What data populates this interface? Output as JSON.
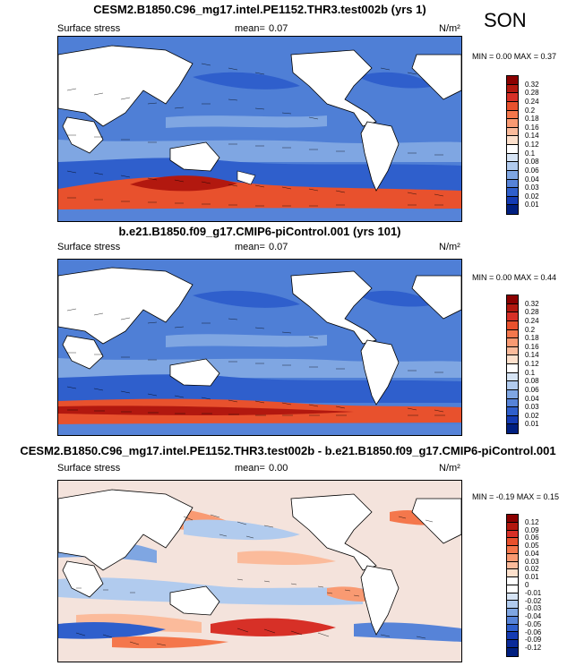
{
  "season": "SON",
  "panels": [
    {
      "title": "CESM2.B1850.C96_mg17.intel.PE1152.THR3.test002b (yrs 1)",
      "variable": "Surface stress",
      "mean_label": "mean=",
      "mean_value": "0.07",
      "units": "N/m²",
      "min_max": "MIN =  0.00 MAX =  0.37",
      "colorbar_labels": [
        "0.32",
        "0.28",
        "0.24",
        "0.2",
        "0.18",
        "0.16",
        "0.14",
        "0.12",
        "0.1",
        "0.08",
        "0.06",
        "0.04",
        "0.03",
        "0.02",
        "0.01"
      ],
      "colorbar_colors": [
        "#8b0000",
        "#b2180f",
        "#d73027",
        "#e8512d",
        "#f4774c",
        "#f99a72",
        "#fbbb9b",
        "#fde0cc",
        "#ffffff",
        "#d6e4f5",
        "#b1cbee",
        "#7fa6e2",
        "#5683d8",
        "#2f5fcc",
        "#143bb3",
        "#001f80"
      ]
    },
    {
      "title": "b.e21.B1850.f09_g17.CMIP6-piControl.001 (yrs 101)",
      "variable": "Surface stress",
      "mean_label": "mean=",
      "mean_value": "0.07",
      "units": "N/m²",
      "min_max": "MIN =  0.00 MAX =  0.44",
      "colorbar_labels": [
        "0.32",
        "0.28",
        "0.24",
        "0.2",
        "0.18",
        "0.16",
        "0.14",
        "0.12",
        "0.1",
        "0.08",
        "0.06",
        "0.04",
        "0.03",
        "0.02",
        "0.01"
      ],
      "colorbar_colors": [
        "#8b0000",
        "#b2180f",
        "#d73027",
        "#e8512d",
        "#f4774c",
        "#f99a72",
        "#fbbb9b",
        "#fde0cc",
        "#ffffff",
        "#d6e4f5",
        "#b1cbee",
        "#7fa6e2",
        "#5683d8",
        "#2f5fcc",
        "#143bb3",
        "#001f80"
      ]
    },
    {
      "title": "CESM2.B1850.C96_mg17.intel.PE1152.THR3.test002b - b.e21.B1850.f09_g17.CMIP6-piControl.001",
      "variable": "Surface stress",
      "mean_label": "mean=",
      "mean_value": "0.00",
      "units": "N/m²",
      "min_max": "MIN = -0.19 MAX =  0.15",
      "colorbar_labels": [
        "0.12",
        "0.09",
        "0.06",
        "0.05",
        "0.04",
        "0.03",
        "0.02",
        "0.01",
        "0",
        "-0.01",
        "-0.02",
        "-0.03",
        "-0.04",
        "-0.05",
        "-0.06",
        "-0.09",
        "-0.12"
      ],
      "colorbar_colors": [
        "#8b0000",
        "#b2180f",
        "#d73027",
        "#e8512d",
        "#f4774c",
        "#f99a72",
        "#fbbb9b",
        "#fde0cc",
        "#ffffff",
        "#ffffff",
        "#d6e4f5",
        "#b1cbee",
        "#7fa6e2",
        "#5683d8",
        "#2f5fcc",
        "#143bb3",
        "#0a2a99",
        "#001f80"
      ]
    }
  ]
}
